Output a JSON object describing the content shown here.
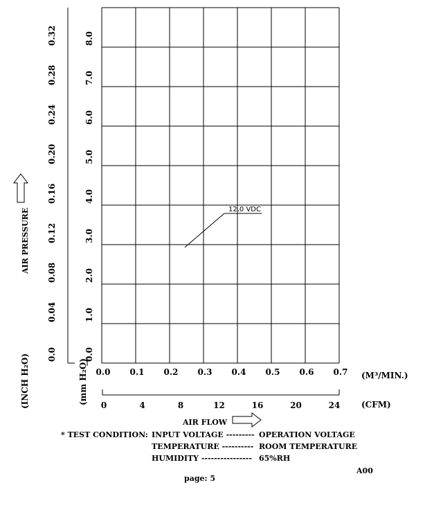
{
  "chart_data": {
    "type": "line",
    "title": "",
    "series": [],
    "x_primary": {
      "unit": "(M³/MIN.)",
      "ticks": [
        "0.0",
        "0.1",
        "0.2",
        "0.3",
        "0.4",
        "0.5",
        "0.6",
        "0.7"
      ],
      "range": [
        0,
        0.7
      ]
    },
    "x_secondary": {
      "unit": "(CFM)",
      "ticks": [
        "0",
        "4",
        "8",
        "12",
        "16",
        "20",
        "24"
      ]
    },
    "xlabel": "AIR FLOW",
    "y_primary": {
      "unit": "(mm H₂O)",
      "ticks": [
        "0.0",
        "1.0",
        "2.0",
        "3.0",
        "4.0",
        "5.0",
        "6.0",
        "7.0",
        "8.0"
      ],
      "range": [
        0,
        9
      ]
    },
    "y_secondary": {
      "unit": "(INCH H₂O)",
      "ticks": [
        "0.0",
        "0.04",
        "0.08",
        "0.12",
        "0.16",
        "0.20",
        "0.24",
        "0.28",
        "0.32"
      ]
    },
    "ylabel": "AIR PRESSURE",
    "grid": true,
    "annotation": {
      "text": "12.0 VDC"
    }
  },
  "test_condition": {
    "prefix": "* TEST CONDITION:",
    "rows": [
      {
        "label": "INPUT VOLTAGE ---------",
        "value": "OPERATION VOLTAGE"
      },
      {
        "label": "TEMPERATURE ----------",
        "value": "ROOM TEMPERATURE"
      },
      {
        "label": "HUMIDITY ----------------",
        "value": "65%RH"
      }
    ]
  },
  "revision": "A00",
  "page_label": "page:  5"
}
